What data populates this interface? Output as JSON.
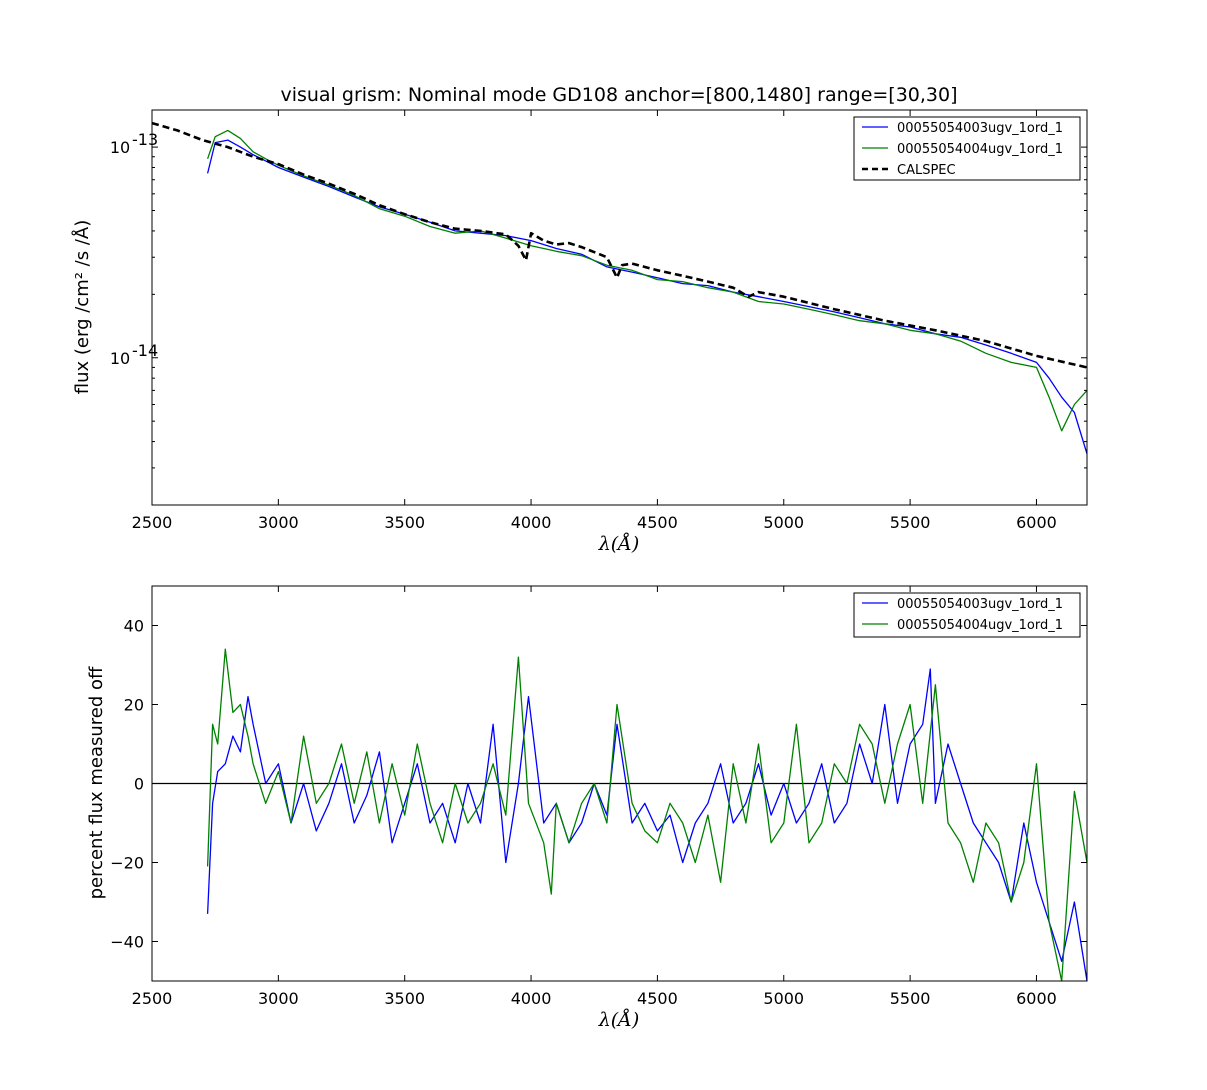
{
  "colors": {
    "series_a": "#0000ff",
    "series_b": "#008000",
    "calspec": "#000000",
    "zero_line": "#000000"
  },
  "chart_data": [
    {
      "type": "line",
      "title": "visual grism: Nominal mode GD108 anchor=[800,1480] range=[30,30]",
      "xlabel": "λ(Å)",
      "ylabel": "flux (erg /cm² /s /Å)",
      "xlim": [
        2500,
        6200
      ],
      "ylim": [
        2e-15,
        1.5e-13
      ],
      "yscale": "log",
      "xticks": [
        "2500",
        "3000",
        "3500",
        "4000",
        "4500",
        "5000",
        "5500",
        "6000"
      ],
      "yticks": [
        {
          "value": 1e-14,
          "base": "10",
          "exp": "-14"
        },
        {
          "value": 1e-13,
          "base": "10",
          "exp": "-13"
        }
      ],
      "grid": false,
      "legend": "top-right",
      "series": [
        {
          "name": "00055054003ugv_1ord_1",
          "x": [
            2720,
            2750,
            2800,
            2850,
            2900,
            2950,
            3000,
            3100,
            3200,
            3300,
            3400,
            3500,
            3600,
            3700,
            3800,
            3900,
            4000,
            4100,
            4200,
            4300,
            4400,
            4500,
            4600,
            4700,
            4800,
            4900,
            5000,
            5100,
            5200,
            5300,
            5400,
            5500,
            5600,
            5700,
            5800,
            5900,
            6000,
            6050,
            6100,
            6150,
            6200
          ],
          "y": [
            7.5e-14,
            1.05e-13,
            1.08e-13,
            1e-13,
            9.2e-14,
            8.6e-14,
            8e-14,
            7.2e-14,
            6.5e-14,
            5.8e-14,
            5.2e-14,
            4.8e-14,
            4.4e-14,
            4e-14,
            3.9e-14,
            3.8e-14,
            3.6e-14,
            3.3e-14,
            3.1e-14,
            2.7e-14,
            2.55e-14,
            2.4e-14,
            2.25e-14,
            2.2e-14,
            2.05e-14,
            1.95e-14,
            1.85e-14,
            1.75e-14,
            1.65e-14,
            1.55e-14,
            1.45e-14,
            1.4e-14,
            1.3e-14,
            1.25e-14,
            1.15e-14,
            1.05e-14,
            9.5e-15,
            8e-15,
            6.5e-15,
            5.5e-15,
            3.5e-15
          ]
        },
        {
          "name": "00055054004ugv_1ord_1",
          "x": [
            2720,
            2750,
            2800,
            2850,
            2900,
            2950,
            3000,
            3100,
            3200,
            3300,
            3400,
            3500,
            3600,
            3700,
            3800,
            3900,
            4000,
            4100,
            4200,
            4300,
            4400,
            4500,
            4600,
            4700,
            4800,
            4900,
            5000,
            5100,
            5200,
            5300,
            5400,
            5500,
            5600,
            5700,
            5800,
            5900,
            6000,
            6050,
            6100,
            6150,
            6200
          ],
          "y": [
            8.8e-14,
            1.12e-13,
            1.2e-13,
            1.1e-13,
            9.5e-14,
            8.8e-14,
            8.2e-14,
            7.3e-14,
            6.6e-14,
            5.9e-14,
            5.1e-14,
            4.7e-14,
            4.2e-14,
            3.9e-14,
            4e-14,
            3.7e-14,
            3.4e-14,
            3.2e-14,
            3.05e-14,
            2.75e-14,
            2.6e-14,
            2.35e-14,
            2.3e-14,
            2.15e-14,
            2.05e-14,
            1.85e-14,
            1.8e-14,
            1.7e-14,
            1.6e-14,
            1.5e-14,
            1.45e-14,
            1.35e-14,
            1.3e-14,
            1.2e-14,
            1.05e-14,
            9.5e-15,
            9e-15,
            6.5e-15,
            4.5e-15,
            6e-15,
            7e-15
          ]
        },
        {
          "name": "CALSPEC",
          "x": [
            2500,
            2600,
            2700,
            2800,
            2900,
            3000,
            3100,
            3200,
            3300,
            3400,
            3500,
            3600,
            3700,
            3800,
            3900,
            3950,
            3980,
            4000,
            4050,
            4100,
            4150,
            4200,
            4300,
            4340,
            4360,
            4400,
            4500,
            4600,
            4700,
            4800,
            4860,
            4900,
            5000,
            5200,
            5400,
            5600,
            5800,
            6000,
            6200
          ],
          "y": [
            1.3e-13,
            1.2e-13,
            1.08e-13,
            1e-13,
            9e-14,
            8.3e-14,
            7.4e-14,
            6.7e-14,
            6e-14,
            5.3e-14,
            4.8e-14,
            4.4e-14,
            4.1e-14,
            4e-14,
            3.85e-14,
            3.4e-14,
            2.9e-14,
            3.9e-14,
            3.6e-14,
            3.45e-14,
            3.5e-14,
            3.35e-14,
            3e-14,
            2.4e-14,
            2.75e-14,
            2.8e-14,
            2.6e-14,
            2.45e-14,
            2.3e-14,
            2.15e-14,
            1.95e-14,
            2.05e-14,
            1.95e-14,
            1.7e-14,
            1.5e-14,
            1.35e-14,
            1.2e-14,
            1.02e-14,
            9e-15
          ]
        }
      ]
    },
    {
      "type": "line",
      "title": "",
      "xlabel": "λ(Å)",
      "ylabel": "percent flux measured off",
      "xlim": [
        2500,
        6200
      ],
      "ylim": [
        -50,
        50
      ],
      "xticks": [
        "2500",
        "3000",
        "3500",
        "4000",
        "4500",
        "5000",
        "5500",
        "6000"
      ],
      "yticks": [
        "−40",
        "−20",
        "0",
        "20",
        "40"
      ],
      "grid": false,
      "legend": "top-right",
      "series": [
        {
          "name": "00055054003ugv_1ord_1",
          "x": [
            2720,
            2740,
            2760,
            2790,
            2820,
            2850,
            2880,
            2900,
            2950,
            3000,
            3050,
            3100,
            3150,
            3200,
            3250,
            3300,
            3350,
            3400,
            3450,
            3500,
            3550,
            3600,
            3650,
            3700,
            3750,
            3800,
            3850,
            3900,
            3950,
            3990,
            4050,
            4100,
            4150,
            4200,
            4250,
            4300,
            4340,
            4400,
            4450,
            4500,
            4550,
            4600,
            4650,
            4700,
            4750,
            4800,
            4850,
            4900,
            4950,
            5000,
            5050,
            5100,
            5150,
            5200,
            5250,
            5300,
            5350,
            5400,
            5450,
            5500,
            5550,
            5580,
            5600,
            5650,
            5700,
            5750,
            5800,
            5850,
            5900,
            5950,
            6000,
            6050,
            6100,
            6150,
            6200
          ],
          "y": [
            -33,
            -5,
            3,
            5,
            12,
            8,
            22,
            15,
            0,
            5,
            -10,
            0,
            -12,
            -5,
            5,
            -10,
            -3,
            8,
            -15,
            -5,
            5,
            -10,
            -5,
            -15,
            0,
            -10,
            15,
            -20,
            0,
            22,
            -10,
            -5,
            -15,
            -10,
            0,
            -8,
            15,
            -10,
            -5,
            -12,
            -8,
            -20,
            -10,
            -5,
            5,
            -10,
            -5,
            5,
            -8,
            0,
            -10,
            -5,
            5,
            -10,
            -5,
            10,
            0,
            20,
            -5,
            10,
            15,
            29,
            -5,
            10,
            0,
            -10,
            -15,
            -20,
            -30,
            -10,
            -25,
            -35,
            -45,
            -30,
            -50
          ]
        },
        {
          "name": "00055054004ugv_1ord_1",
          "x": [
            2720,
            2740,
            2760,
            2790,
            2820,
            2850,
            2880,
            2900,
            2950,
            3000,
            3050,
            3100,
            3150,
            3200,
            3250,
            3300,
            3350,
            3400,
            3450,
            3500,
            3550,
            3600,
            3650,
            3700,
            3750,
            3800,
            3850,
            3900,
            3950,
            3990,
            4050,
            4080,
            4100,
            4150,
            4200,
            4250,
            4300,
            4340,
            4400,
            4450,
            4500,
            4550,
            4600,
            4650,
            4700,
            4750,
            4800,
            4850,
            4900,
            4950,
            5000,
            5050,
            5100,
            5150,
            5200,
            5250,
            5300,
            5350,
            5400,
            5450,
            5500,
            5550,
            5600,
            5650,
            5700,
            5750,
            5800,
            5850,
            5900,
            5950,
            6000,
            6050,
            6100,
            6150,
            6200
          ],
          "y": [
            -21,
            15,
            10,
            34,
            18,
            20,
            12,
            5,
            -5,
            3,
            -10,
            12,
            -5,
            0,
            10,
            -5,
            8,
            -10,
            5,
            -8,
            10,
            -5,
            -15,
            0,
            -10,
            -5,
            5,
            -8,
            32,
            -5,
            -15,
            -28,
            -5,
            -15,
            -5,
            0,
            -10,
            20,
            -5,
            -12,
            -15,
            -5,
            -10,
            -20,
            -8,
            -25,
            5,
            -10,
            10,
            -15,
            -10,
            15,
            -15,
            -10,
            5,
            0,
            15,
            10,
            -5,
            10,
            20,
            -5,
            25,
            -10,
            -15,
            -25,
            -10,
            -15,
            -30,
            -20,
            5,
            -35,
            -50,
            -2,
            -20
          ]
        }
      ]
    }
  ]
}
